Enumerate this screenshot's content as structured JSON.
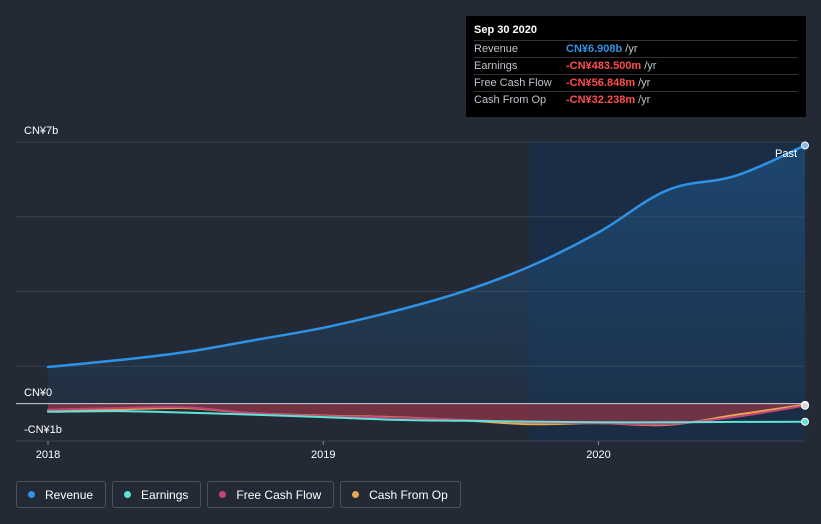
{
  "chart_data": {
    "type": "line",
    "title": "",
    "currency_unit": "CN¥",
    "y_axis_labels": [
      "CN¥7b",
      "CN¥0",
      "-CN¥1b"
    ],
    "ylim": [
      -1,
      7
    ],
    "x_tick_labels": [
      "2018",
      "2019",
      "2020"
    ],
    "xlim": [
      2018.0,
      2020.75
    ],
    "past_label": "Past",
    "past_start": 2019.75,
    "series": [
      {
        "name": "Revenue",
        "color": "#2e93e6",
        "x": [
          2018.0,
          2018.25,
          2018.5,
          2018.75,
          2019.0,
          2019.25,
          2019.5,
          2019.75,
          2020.0,
          2020.25,
          2020.5,
          2020.75
        ],
        "values": [
          0.98,
          1.16,
          1.38,
          1.7,
          2.03,
          2.46,
          2.98,
          3.67,
          4.58,
          5.71,
          6.1,
          6.908
        ]
      },
      {
        "name": "Earnings",
        "color": "#5fe3d5",
        "x": [
          2018.0,
          2018.25,
          2018.5,
          2018.75,
          2019.0,
          2019.25,
          2019.5,
          2019.75,
          2020.0,
          2020.25,
          2020.5,
          2020.75
        ],
        "values": [
          -0.22,
          -0.2,
          -0.24,
          -0.3,
          -0.36,
          -0.43,
          -0.46,
          -0.48,
          -0.5,
          -0.5,
          -0.49,
          -0.4835
        ]
      },
      {
        "name": "Free Cash Flow",
        "color": "#c1457a",
        "x": [
          2018.0,
          2018.25,
          2018.5,
          2018.75,
          2019.0,
          2019.25,
          2019.5,
          2019.75,
          2020.0,
          2020.25,
          2020.5,
          2020.75
        ],
        "values": [
          -0.16,
          -0.12,
          -0.1,
          -0.26,
          -0.33,
          -0.37,
          -0.43,
          -0.5,
          -0.52,
          -0.55,
          -0.35,
          -0.056848
        ]
      },
      {
        "name": "Cash From Op",
        "color": "#e8a84e",
        "x": [
          2018.0,
          2018.25,
          2018.5,
          2018.75,
          2019.0,
          2019.25,
          2019.5,
          2019.75,
          2020.0,
          2020.25,
          2020.5,
          2020.75
        ],
        "values": [
          -0.2,
          -0.16,
          -0.12,
          -0.26,
          -0.32,
          -0.36,
          -0.44,
          -0.55,
          -0.52,
          -0.57,
          -0.3,
          -0.032238
        ]
      }
    ]
  },
  "tooltip": {
    "date": "Sep 30 2020",
    "rows": [
      {
        "label": "Revenue",
        "value": "CN¥6.908b",
        "unit": "/yr",
        "color": "#2e93e6"
      },
      {
        "label": "Earnings",
        "value": "-CN¥483.500m",
        "unit": "/yr",
        "color": "#ff4d4d"
      },
      {
        "label": "Free Cash Flow",
        "value": "-CN¥56.848m",
        "unit": "/yr",
        "color": "#ff4d4d"
      },
      {
        "label": "Cash From Op",
        "value": "-CN¥32.238m",
        "unit": "/yr",
        "color": "#ff4d4d"
      }
    ]
  },
  "legend": [
    {
      "label": "Revenue",
      "color": "#2e93e6"
    },
    {
      "label": "Earnings",
      "color": "#5fe3d5"
    },
    {
      "label": "Free Cash Flow",
      "color": "#c1457a"
    },
    {
      "label": "Cash From Op",
      "color": "#e8a84e"
    }
  ]
}
